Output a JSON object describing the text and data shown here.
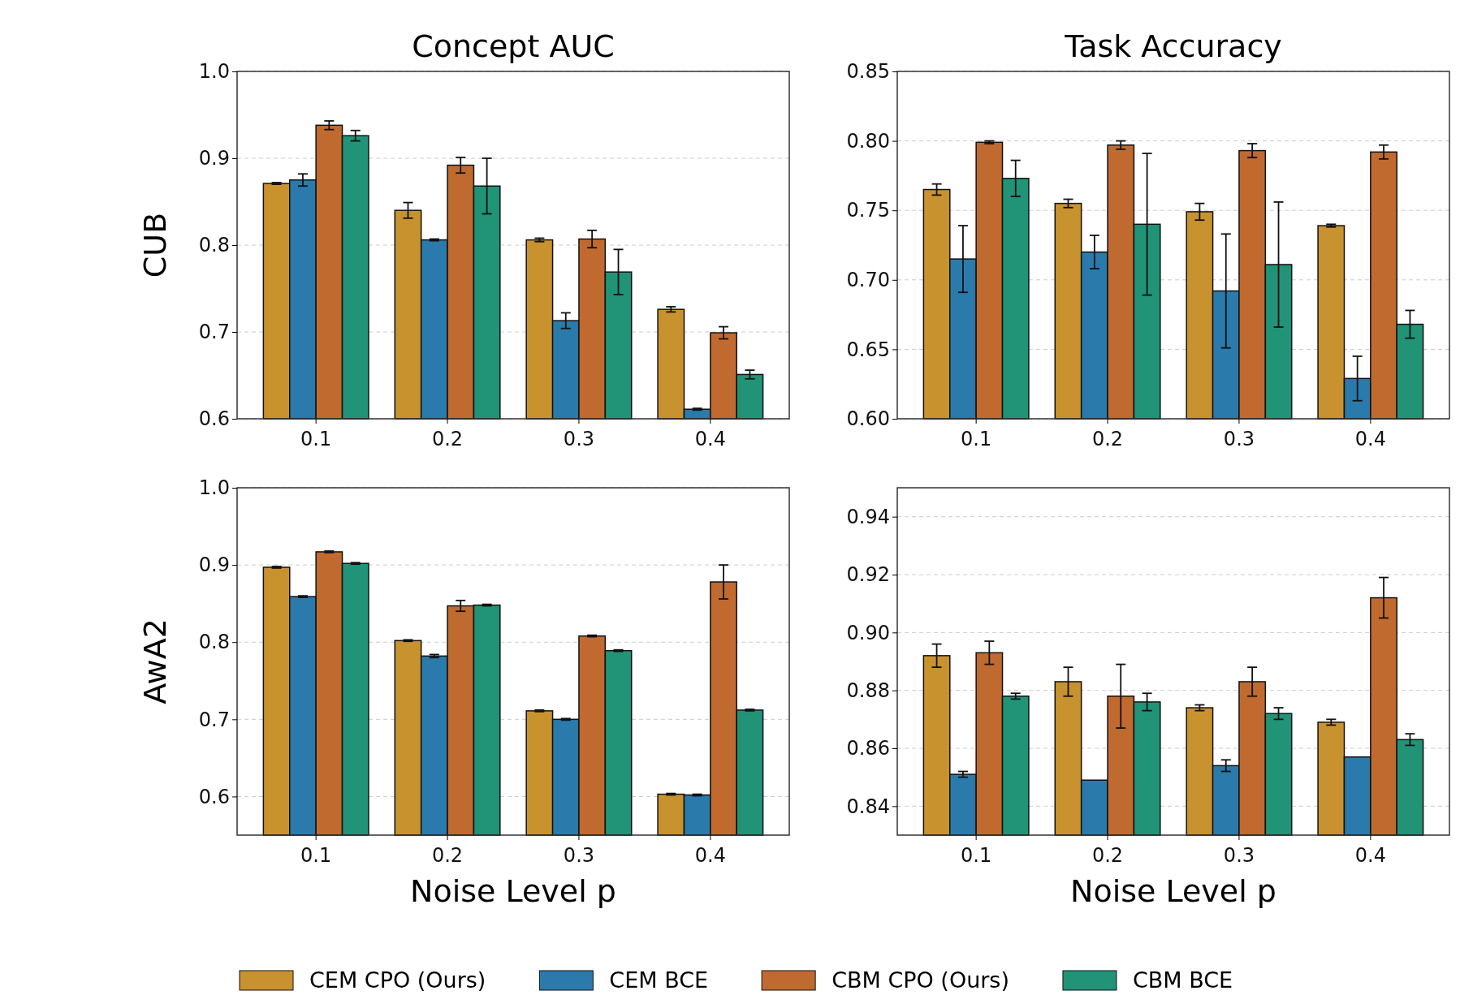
{
  "chart_data": [
    {
      "type": "bar",
      "title": "Concept AUC",
      "ylabel": "CUB",
      "categories": [
        "0.1",
        "0.2",
        "0.3",
        "0.4"
      ],
      "ylim": [
        0.6,
        1.0
      ],
      "yticks": [
        {
          "value": 0.6,
          "label": "0.6"
        },
        {
          "value": 0.7,
          "label": "0.7"
        },
        {
          "value": 0.8,
          "label": "0.8"
        },
        {
          "value": 0.9,
          "label": "0.9"
        },
        {
          "value": 1.0,
          "label": "1.0"
        }
      ],
      "grid": "y",
      "legend": "bottom",
      "series": [
        {
          "name": "CEM CPO (Ours)",
          "color": "#c8922f",
          "values": [
            0.871,
            0.84,
            0.806,
            0.726
          ],
          "errors": [
            0.001,
            0.009,
            0.002,
            0.003
          ]
        },
        {
          "name": "CEM BCE",
          "color": "#2a7aab",
          "values": [
            0.875,
            0.806,
            0.713,
            0.611
          ],
          "errors": [
            0.007,
            0.001,
            0.009,
            0.001
          ]
        },
        {
          "name": "CBM CPO (Ours)",
          "color": "#c06a30",
          "values": [
            0.938,
            0.892,
            0.807,
            0.699
          ],
          "errors": [
            0.005,
            0.009,
            0.01,
            0.007
          ]
        },
        {
          "name": "CBM BCE",
          "color": "#219376",
          "values": [
            0.926,
            0.868,
            0.769,
            0.651
          ],
          "errors": [
            0.006,
            0.032,
            0.026,
            0.005
          ]
        }
      ]
    },
    {
      "type": "bar",
      "title": "Task Accuracy",
      "categories": [
        "0.1",
        "0.2",
        "0.3",
        "0.4"
      ],
      "ylim": [
        0.6,
        0.85
      ],
      "yticks": [
        {
          "value": 0.6,
          "label": "0.60"
        },
        {
          "value": 0.65,
          "label": "0.65"
        },
        {
          "value": 0.7,
          "label": "0.70"
        },
        {
          "value": 0.75,
          "label": "0.75"
        },
        {
          "value": 0.8,
          "label": "0.80"
        },
        {
          "value": 0.85,
          "label": "0.85"
        }
      ],
      "grid": "y",
      "legend": false,
      "series": [
        {
          "color": "#c8922f",
          "values": [
            0.765,
            0.755,
            0.749,
            0.739
          ],
          "errors": [
            0.004,
            0.003,
            0.006,
            0.001
          ]
        },
        {
          "color": "#2a7aab",
          "values": [
            0.715,
            0.72,
            0.692,
            0.629
          ],
          "errors": [
            0.024,
            0.012,
            0.041,
            0.016
          ]
        },
        {
          "color": "#c06a30",
          "values": [
            0.799,
            0.797,
            0.793,
            0.792
          ],
          "errors": [
            0.001,
            0.003,
            0.005,
            0.005
          ]
        },
        {
          "color": "#219376",
          "values": [
            0.773,
            0.74,
            0.711,
            0.668
          ],
          "errors": [
            0.013,
            0.051,
            0.045,
            0.01
          ]
        }
      ]
    },
    {
      "type": "bar",
      "ylabel": "AwA2",
      "xlabel": "Noise Level p",
      "categories": [
        "0.1",
        "0.2",
        "0.3",
        "0.4"
      ],
      "ylim": [
        0.55,
        1.0
      ],
      "yticks": [
        {
          "value": 0.6,
          "label": "0.6"
        },
        {
          "value": 0.7,
          "label": "0.7"
        },
        {
          "value": 0.8,
          "label": "0.8"
        },
        {
          "value": 0.9,
          "label": "0.9"
        },
        {
          "value": 1.0,
          "label": "1.0"
        }
      ],
      "grid": "y",
      "legend": false,
      "series": [
        {
          "color": "#c8922f",
          "values": [
            0.897,
            0.802,
            0.711,
            0.603
          ],
          "errors": [
            0.001,
            0.001,
            0.001,
            0.001
          ]
        },
        {
          "color": "#2a7aab",
          "values": [
            0.859,
            0.782,
            0.7,
            0.602
          ],
          "errors": [
            0.001,
            0.002,
            0.001,
            0.001
          ]
        },
        {
          "color": "#c06a30",
          "values": [
            0.917,
            0.847,
            0.808,
            0.878
          ],
          "errors": [
            0.001,
            0.007,
            0.001,
            0.022
          ]
        },
        {
          "color": "#219376",
          "values": [
            0.902,
            0.848,
            0.789,
            0.712
          ],
          "errors": [
            0.001,
            0.001,
            0.001,
            0.001
          ]
        }
      ]
    },
    {
      "type": "bar",
      "xlabel": "Noise Level p",
      "categories": [
        "0.1",
        "0.2",
        "0.3",
        "0.4"
      ],
      "ylim": [
        0.83,
        0.95
      ],
      "yticks": [
        0.84,
        0.86,
        0.88,
        {
          "value": 0.9,
          "label": "0.90"
        },
        0.92,
        0.94
      ],
      "grid": "y",
      "legend": false,
      "series": [
        {
          "color": "#c8922f",
          "values": [
            0.892,
            0.883,
            0.874,
            0.869
          ],
          "errors": [
            0.004,
            0.005,
            0.001,
            0.001
          ]
        },
        {
          "color": "#2a7aab",
          "values": [
            0.851,
            0.849,
            0.854,
            0.857
          ],
          "errors": [
            0.001,
            null,
            0.002,
            null
          ]
        },
        {
          "color": "#c06a30",
          "values": [
            0.893,
            0.878,
            0.883,
            0.912
          ],
          "errors": [
            0.004,
            0.011,
            0.005,
            0.007
          ]
        },
        {
          "color": "#219376",
          "values": [
            0.878,
            0.876,
            0.872,
            0.863
          ],
          "errors": [
            0.001,
            0.003,
            0.002,
            0.002
          ]
        }
      ]
    }
  ]
}
